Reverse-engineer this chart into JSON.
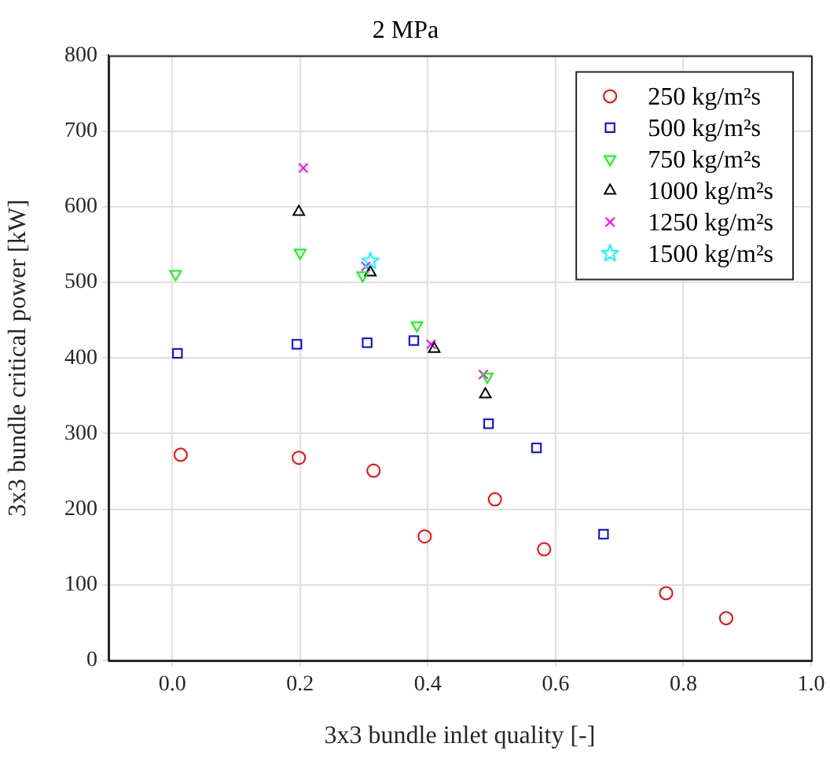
{
  "chart_data": {
    "type": "scatter",
    "title": "2 MPa",
    "xlabel": "3x3 bundle inlet quality [-]",
    "ylabel": "3x3 bundle critical power [kW]",
    "xlim": [
      -0.1,
      1.0
    ],
    "xticks": [
      {
        "value": 0,
        "label": "0.0"
      },
      0.2,
      0.4,
      0.6,
      0.8,
      {
        "value": 1,
        "label": "1.0"
      }
    ],
    "ylim": [
      0,
      800
    ],
    "yticks": [
      0,
      100,
      200,
      300,
      400,
      500,
      600,
      700,
      800
    ],
    "grid": true,
    "legend": "top right",
    "series": [
      {
        "name": "250 kg/m²s",
        "color": "#ff0000",
        "marker": "circle",
        "x": [
          0.013,
          0.198,
          0.315,
          0.395,
          0.505,
          0.582,
          0.773,
          0.867
        ],
        "values": [
          272,
          268,
          251,
          164,
          213,
          147,
          89,
          56
        ]
      },
      {
        "name": "500 kg/m²s",
        "color": "#0000ff",
        "marker": "square",
        "x": [
          0.008,
          0.195,
          0.305,
          0.378,
          0.495,
          0.57,
          0.675
        ],
        "values": [
          406,
          418,
          420,
          423,
          313,
          281,
          167
        ]
      },
      {
        "name": "750 kg/m²s",
        "color": "#00ff00",
        "marker": "triangle-down",
        "x": [
          0.005,
          0.2,
          0.298,
          0.383,
          0.493
        ],
        "values": [
          511,
          539,
          509,
          443,
          375
        ]
      },
      {
        "name": "1000 kg/m²s",
        "color": "#000000",
        "marker": "triangle",
        "x": [
          0.198,
          0.31,
          0.41,
          0.49
        ],
        "values": [
          593,
          513,
          412,
          352
        ]
      },
      {
        "name": "1250 kg/m²s",
        "color": "#ff00ff",
        "marker": "cross",
        "x": [
          0.205,
          0.303,
          0.405,
          0.487
        ],
        "values": [
          651,
          521,
          418,
          378
        ]
      },
      {
        "name": "1500 kg/m²s",
        "color": "#00ffff",
        "marker": "star",
        "x": [
          0.31
        ],
        "values": [
          528
        ]
      }
    ]
  }
}
